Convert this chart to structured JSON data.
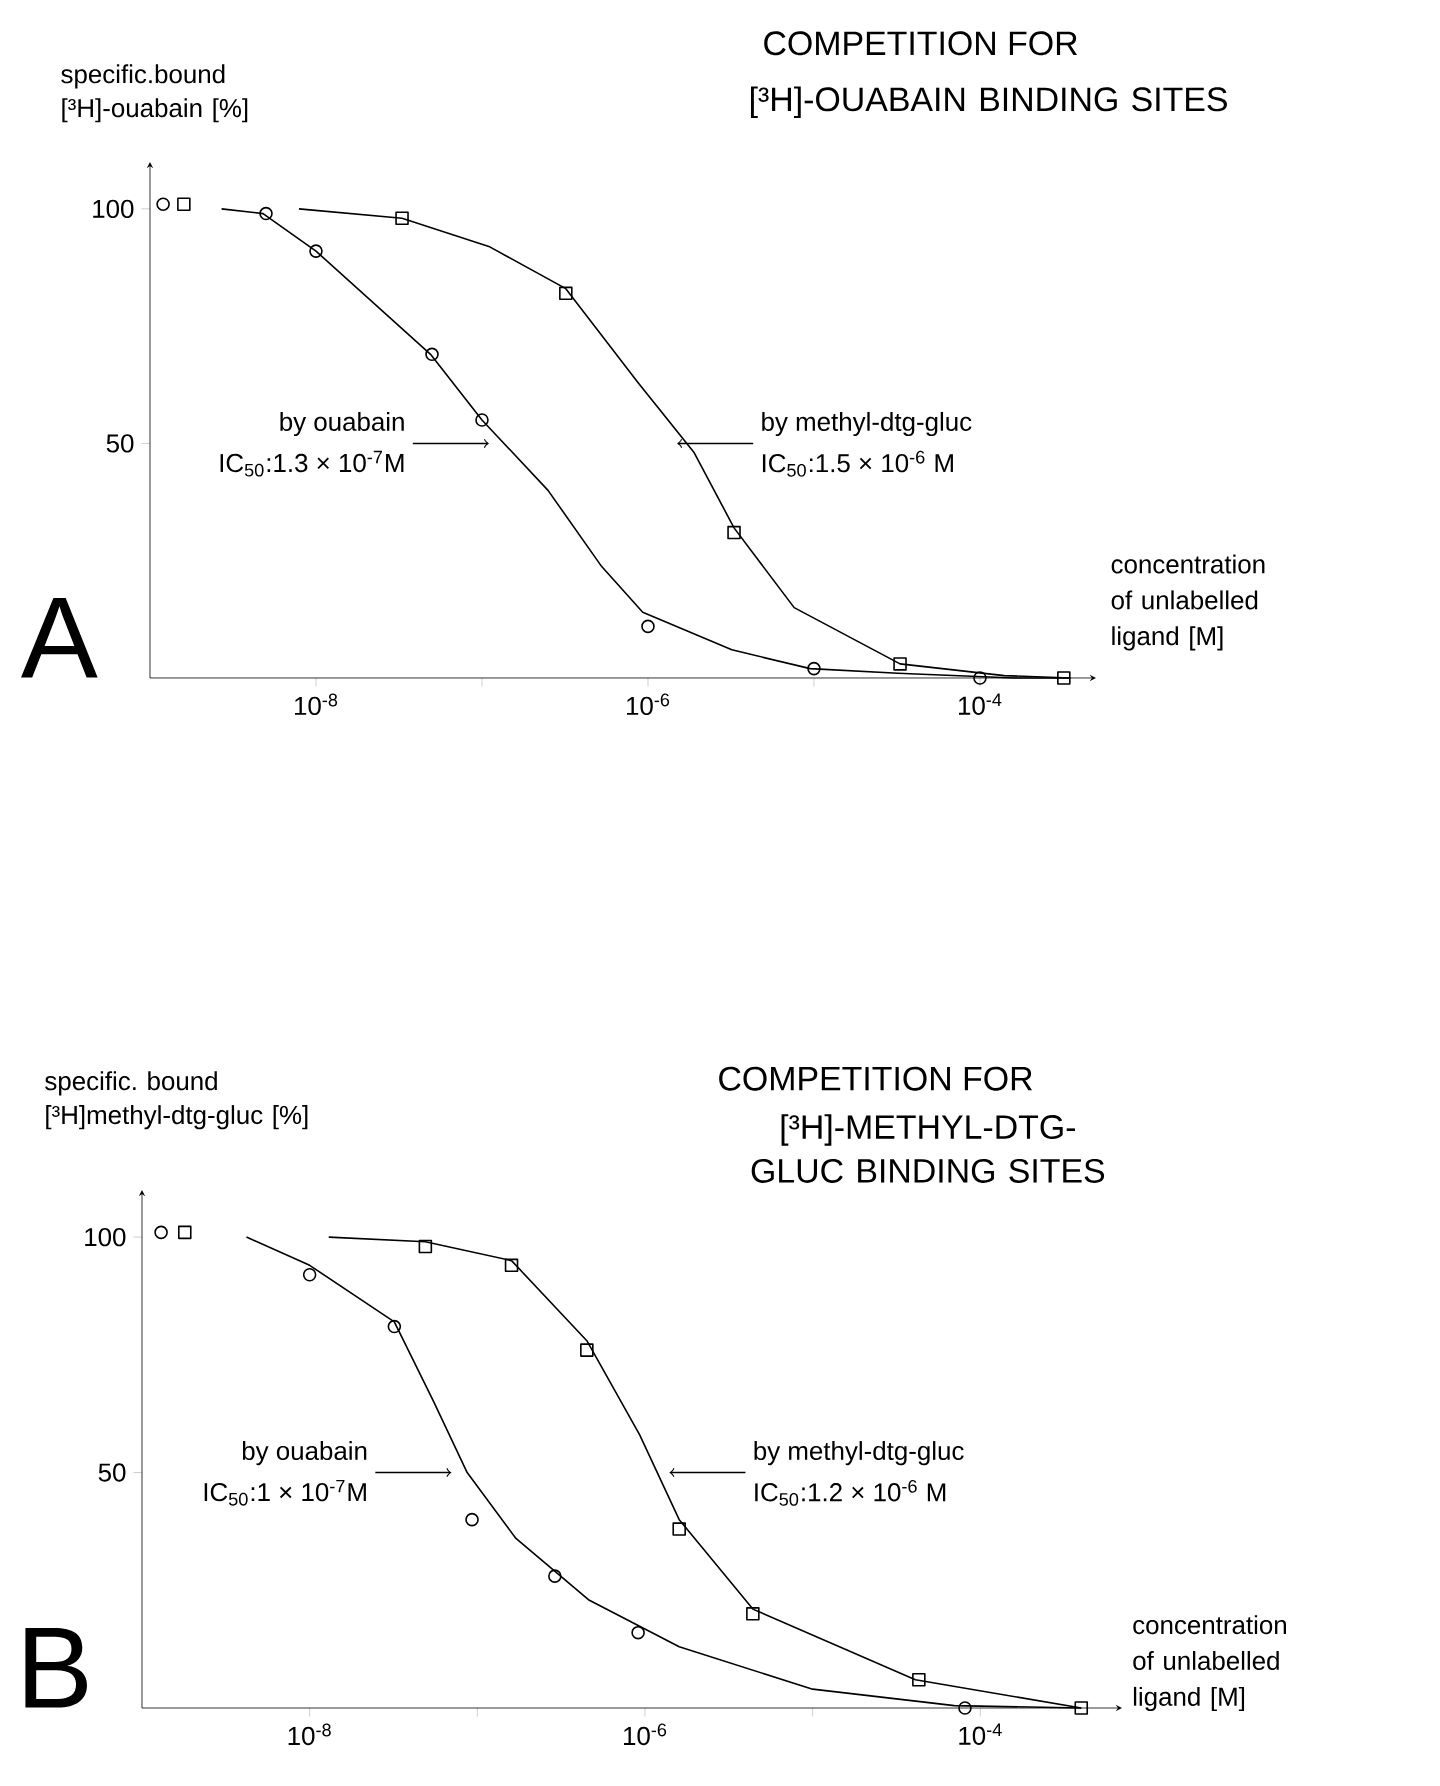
{
  "chart_data": [
    {
      "type": "scatter",
      "title": "COMPETITION FOR",
      "subtitle": "[³H]-OUABAIN BINDING SITES",
      "ylabel": "specific.bound [³H]-ouabain [%]",
      "xlabel": "concentration of unlabelled ligand [M]",
      "log": "x",
      "xlim": [
        1e-09,
        0.0005
      ],
      "ylim": [
        0,
        110
      ],
      "xticks": [
        {
          "value": 1e-08,
          "label": "10$^{-8}$"
        },
        {
          "value": 1e-07,
          "label": null
        },
        {
          "value": 1e-06,
          "label": "10$^{-6}$"
        },
        {
          "value": 1e-05,
          "label": null
        },
        {
          "value": 0.0001,
          "label": "10$^{-4}$"
        }
      ],
      "yticks": [
        50,
        100
      ],
      "annotations": [
        "A",
        {
          "text": "by ouabain",
          "x": 1.1e-07,
          "y": 50
        },
        "IC$_{50}$:1.3 × 10$^{-7}$M",
        {
          "text": "by methyl-dtg-gluc",
          "x": 1.5e-06,
          "y": 50
        },
        "IC$_{50}$:1.5 × 10$^{-6}$ M"
      ],
      "series": [
        {
          "type": "line",
          "marker": "none",
          "color": "#000000",
          "x": [
            2.7e-09,
            4.8e-09,
            1e-08,
            4.9e-08,
            1e-07,
            2.5e-07,
            5.2e-07,
            9.3e-07,
            3.2e-06,
            9.5e-06,
            3.2e-05,
            0.00016,
            0.00035
          ],
          "values": [
            100,
            99,
            91,
            69,
            55,
            40,
            24,
            14,
            6,
            2,
            1,
            0,
            0
          ]
        },
        {
          "type": "line",
          "marker": "none",
          "color": "#000000",
          "x": [
            7.9e-09,
            3.3e-08,
            1.1e-07,
            3.2e-07,
            8.7e-07,
            1.9e-06,
            3.3e-06,
            7.6e-06,
            3.3e-05,
            0.00014,
            0.00035
          ],
          "values": [
            100,
            98,
            92,
            83,
            63,
            48,
            32,
            15,
            3,
            0.5,
            0
          ]
        },
        {
          "marker": "circle",
          "color": "#000000",
          "x": [
            1.2e-09,
            5e-09,
            1e-08,
            5e-08,
            1e-07,
            1e-06,
            1e-05,
            0.0001
          ],
          "values": [
            101,
            99,
            91,
            69,
            55,
            11,
            2,
            0
          ]
        },
        {
          "marker": "square",
          "color": "#000000",
          "x": [
            1.6e-09,
            3.3e-08,
            3.2e-07,
            3.3e-06,
            3.3e-05,
            0.00032
          ],
          "values": [
            101,
            98,
            82,
            31,
            3,
            0
          ]
        }
      ]
    },
    {
      "type": "scatter",
      "title": "COMPETITION FOR",
      "subtitle": "[³H]-METHYL-DTG-GLUC BINDING SITES",
      "ylabel": "specific. bound [³H]methyl-dtg-gluc [%]",
      "xlabel": "concentration of unlabelled ligand [M]",
      "log": "x",
      "xlim": [
        1e-09,
        0.0007
      ],
      "ylim": [
        0,
        110
      ],
      "xticks": [
        {
          "value": 1e-08,
          "label": "10$^{-8}$"
        },
        {
          "value": 1e-07,
          "label": null
        },
        {
          "value": 1e-06,
          "label": "10$^{-6}$"
        },
        {
          "value": 1e-05,
          "label": null
        },
        {
          "value": 0.0001,
          "label": "10$^{-4}$"
        }
      ],
      "yticks": [
        50,
        100
      ],
      "annotations": [
        "B",
        {
          "text": "by ouabain",
          "x": 7e-08,
          "y": 50
        },
        "IC$_{50}$:1 × 10$^{-7}$M",
        {
          "text": "by methyl-dtg-gluc",
          "x": 1.4e-06,
          "y": 50
        },
        "IC$_{50}$:1.2 × 10$^{-6}$ M"
      ],
      "series": [
        {
          "type": "line",
          "marker": "none",
          "color": "#000000",
          "x": [
            4.2e-09,
            1e-08,
            3.2e-08,
            5.5e-08,
            8.7e-08,
            1.7e-07,
            4.6e-07,
            1.6e-06,
            1e-05,
            7e-05,
            0.0004
          ],
          "values": [
            100,
            94,
            82,
            65,
            50,
            36,
            23,
            13,
            4,
            0.5,
            0
          ]
        },
        {
          "type": "line",
          "marker": "none",
          "color": "#000000",
          "x": [
            1.3e-08,
            4.9e-08,
            1.6e-07,
            4.5e-07,
            9.3e-07,
            1.6e-06,
            4.4e-06,
            4.1e-05,
            0.0004
          ],
          "values": [
            100,
            99,
            95,
            78,
            58,
            40,
            21,
            6,
            0
          ]
        },
        {
          "marker": "circle",
          "color": "#000000",
          "x": [
            1.3e-09,
            1e-08,
            3.2e-08,
            9.3e-08,
            2.9e-07,
            9.1e-07,
            8.1e-05
          ],
          "values": [
            101,
            92,
            81,
            40,
            28,
            16,
            0
          ]
        },
        {
          "marker": "square",
          "color": "#000000",
          "x": [
            1.8e-09,
            4.9e-08,
            1.6e-07,
            4.5e-07,
            1.6e-06,
            4.4e-06,
            4.3e-05,
            0.0004
          ],
          "values": [
            101,
            98,
            94,
            76,
            38,
            20,
            6,
            0
          ]
        }
      ]
    }
  ]
}
